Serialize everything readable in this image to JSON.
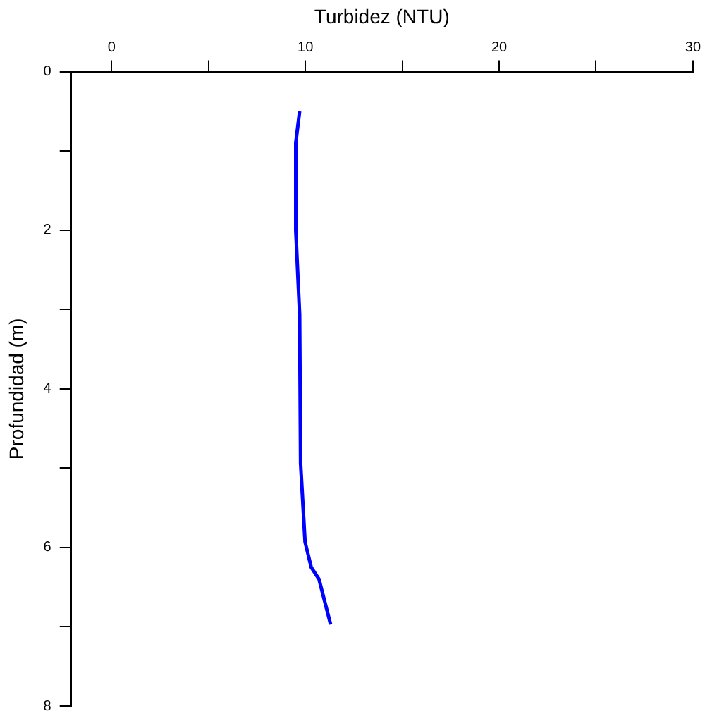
{
  "chart_data": {
    "type": "line",
    "xlabel": "Turbidez (NTU)",
    "ylabel": "Profundidad (m)",
    "series": [
      {
        "color": "#0000ff",
        "x": [
          9.7,
          9.5,
          9.5,
          9.7,
          9.75,
          9.98,
          10.3,
          10.7,
          11.3
        ],
        "values": [
          0.5,
          0.9,
          2,
          3.06,
          4.94,
          5.93,
          6.25,
          6.4,
          6.97
        ]
      }
    ],
    "xlim": [
      -2.1,
      30
    ],
    "xticks": [
      0,
      {
        "value": 5,
        "label": null
      },
      10,
      {
        "value": 15,
        "label": null
      },
      20,
      {
        "value": 25,
        "label": null
      },
      30
    ],
    "ylim": [
      8,
      0
    ],
    "yticks": [
      0,
      {
        "value": 1,
        "label": null
      },
      2,
      {
        "value": 3,
        "label": null
      },
      4,
      {
        "value": 5,
        "label": null
      },
      6,
      {
        "value": 7,
        "label": null
      },
      8
    ],
    "grid": false,
    "legend": false,
    "marker": "none",
    "line_style": "solid"
  }
}
